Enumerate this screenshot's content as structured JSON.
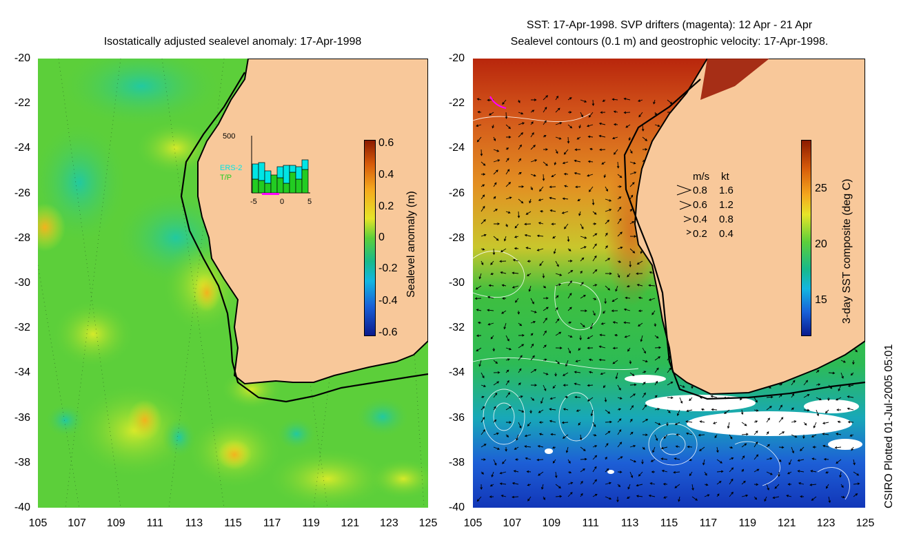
{
  "left_panel": {
    "title": "Isostatically adjusted sealevel anomaly: 17-Apr-1998",
    "colorbar": {
      "label": "Sealevel anomaly (m)",
      "ticks": [
        "0.6",
        "0.4",
        "0.2",
        "0",
        "-0.2",
        "-0.4",
        "-0.6"
      ]
    },
    "inset": {
      "ymax_label": "500",
      "series_labels": [
        "ERS-2",
        "T/P"
      ],
      "series_colors": [
        "#00e5e5",
        "#22cc22"
      ],
      "x_ticks": [
        "-5",
        "0",
        "5"
      ]
    }
  },
  "right_panel": {
    "title_line1": "SST: 17-Apr-1998. SVP drifters (magenta): 12 Apr - 21 Apr",
    "title_line2": "Sealevel contours (0.1 m) and geostrophic velocity: 17-Apr-1998.",
    "colorbar": {
      "label": "3-day SST composite (deg C)",
      "ticks": [
        "25",
        "20",
        "15"
      ]
    },
    "velocity_legend": {
      "header_ms": "m/s",
      "header_kt": "kt",
      "rows": [
        {
          "ms": "0.8",
          "kt": "1.6"
        },
        {
          "ms": "0.6",
          "kt": "1.2"
        },
        {
          "ms": "0.4",
          "kt": "0.8"
        },
        {
          "ms": "0.2",
          "kt": "0.4"
        }
      ]
    }
  },
  "axes": {
    "y_ticks": [
      "-20",
      "-22",
      "-24",
      "-26",
      "-28",
      "-30",
      "-32",
      "-34",
      "-36",
      "-38",
      "-40"
    ],
    "x_ticks": [
      "105",
      "107",
      "109",
      "111",
      "113",
      "115",
      "117",
      "119",
      "121",
      "123",
      "125"
    ]
  },
  "credit": "CSIRO Plotted 01-Jul-2005 05:01",
  "colors": {
    "land": "#f8c89a",
    "left_ocean": "#5ccf3a",
    "sst_warm": "#c23a0f",
    "sst_cool": "#1e5fd6"
  }
}
